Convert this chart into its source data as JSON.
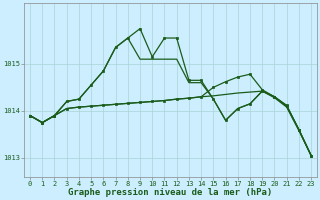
{
  "title": "Graphe pression niveau de la mer (hPa)",
  "bg_color": "#cceeff",
  "line_color": "#1a5c1a",
  "grid_color": "#aad4d4",
  "xlim": [
    -0.5,
    23.5
  ],
  "ylim": [
    1012.6,
    1016.3
  ],
  "yticks": [
    1013,
    1014,
    1015
  ],
  "xticks": [
    0,
    1,
    2,
    3,
    4,
    5,
    6,
    7,
    8,
    9,
    10,
    11,
    12,
    13,
    14,
    15,
    16,
    17,
    18,
    19,
    20,
    21,
    22,
    23
  ],
  "series": [
    {
      "y": [
        1013.9,
        1013.75,
        1013.9,
        1014.2,
        1014.25,
        1014.55,
        1014.85,
        1015.35,
        1015.55,
        1015.75,
        1015.15,
        1015.55,
        1015.55,
        1014.65,
        1014.65,
        1014.25,
        1013.8,
        1014.05,
        1014.15,
        1014.42,
        1014.3,
        1014.1,
        1013.6,
        1013.05
      ],
      "marker": true,
      "lw": 0.9
    },
    {
      "y": [
        1013.9,
        1013.75,
        1013.9,
        1014.2,
        1014.25,
        1014.55,
        1014.85,
        1015.35,
        1015.55,
        1015.1,
        1015.1,
        1015.1,
        1015.1,
        1014.6,
        1014.6,
        1014.25,
        1013.8,
        1014.05,
        1014.15,
        1014.42,
        1014.3,
        1014.1,
        1013.6,
        1013.05
      ],
      "marker": false,
      "lw": 0.9
    },
    {
      "y": [
        1013.9,
        1013.75,
        1013.9,
        1014.05,
        1014.08,
        1014.1,
        1014.12,
        1014.14,
        1014.16,
        1014.18,
        1014.2,
        1014.22,
        1014.25,
        1014.27,
        1014.3,
        1014.32,
        1014.35,
        1014.38,
        1014.4,
        1014.42,
        1014.28,
        1014.08,
        1013.58,
        1013.05
      ],
      "marker": false,
      "lw": 0.9
    },
    {
      "y": [
        1013.9,
        1013.75,
        1013.9,
        1014.05,
        1014.08,
        1014.1,
        1014.12,
        1014.14,
        1014.16,
        1014.18,
        1014.2,
        1014.22,
        1014.25,
        1014.27,
        1014.3,
        1014.5,
        1014.62,
        1014.72,
        1014.78,
        1014.45,
        1014.3,
        1014.12,
        1013.6,
        1013.05
      ],
      "marker": true,
      "lw": 0.9
    }
  ],
  "title_fontsize": 6.5,
  "tick_fontsize": 5.0
}
